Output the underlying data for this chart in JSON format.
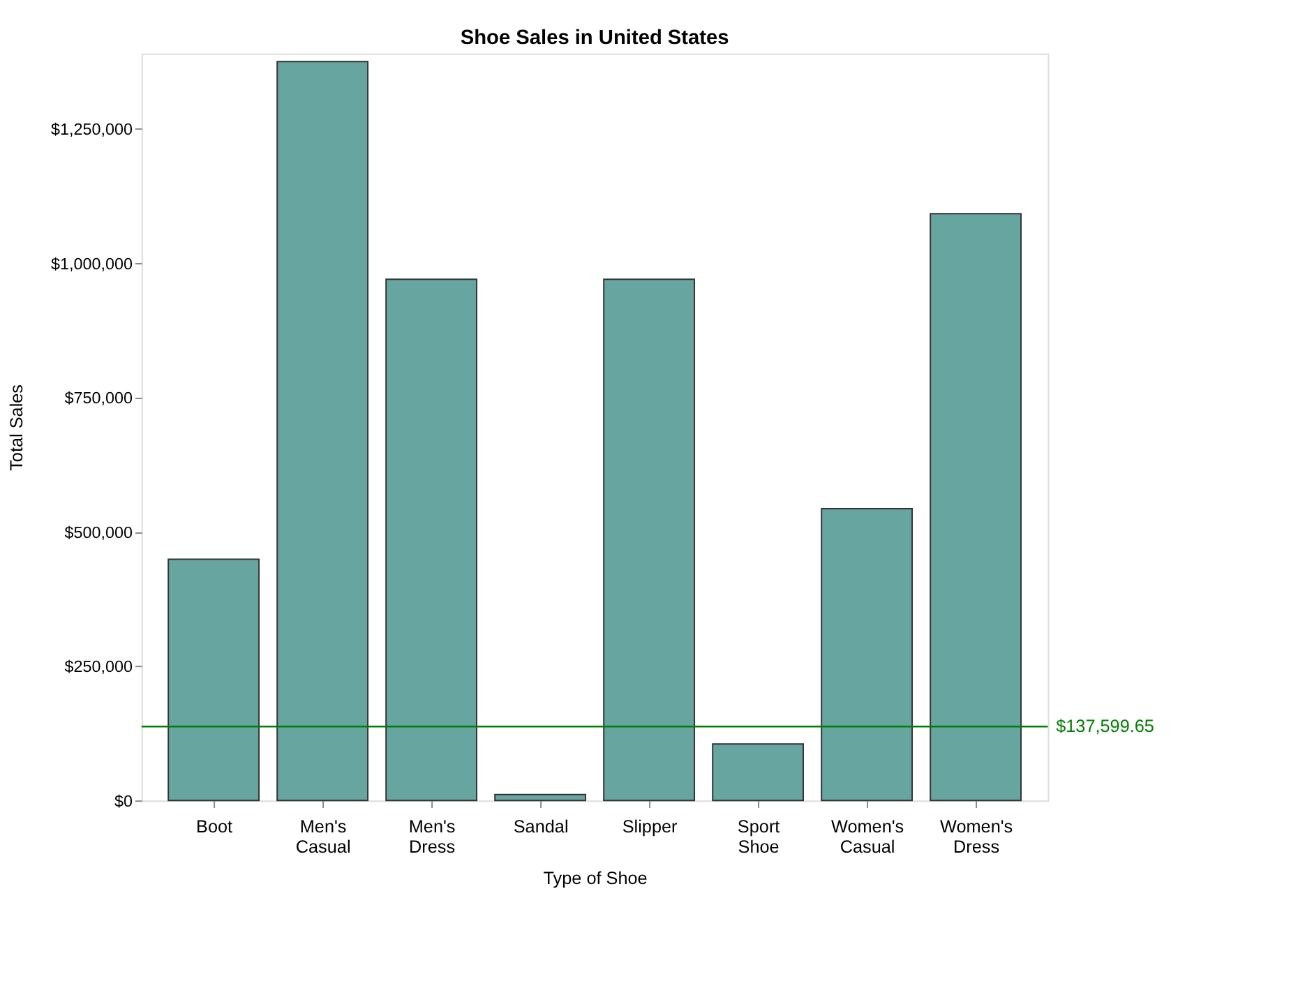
{
  "chart_data": {
    "type": "bar",
    "title": "Shoe Sales in United States",
    "xlabel": "Type of Shoe",
    "ylabel": "Total Sales",
    "categories": [
      "Boot",
      "Men's Casual",
      "Men's Dress",
      "Sandal",
      "Slipper",
      "Sport Shoe",
      "Women's Casual",
      "Women's Dress"
    ],
    "values": [
      449000,
      1375000,
      970000,
      11000,
      970000,
      105000,
      543000,
      1092000
    ],
    "color": "#66a5a0",
    "ylim": [
      0,
      1390000
    ],
    "yticks": [
      {
        "value": 0,
        "label": "$0"
      },
      {
        "value": 250000,
        "label": "$250,000"
      },
      {
        "value": 500000,
        "label": "$500,000"
      },
      {
        "value": 750000,
        "label": "$750,000"
      },
      {
        "value": 1000000,
        "label": "$1,000,000"
      },
      {
        "value": 1250000,
        "label": "$1,250,000"
      }
    ],
    "ref_lines": [
      {
        "axis": "y",
        "value": 137599.65,
        "label": "$137,599.65",
        "color": "#008000"
      }
    ],
    "grid": false
  }
}
